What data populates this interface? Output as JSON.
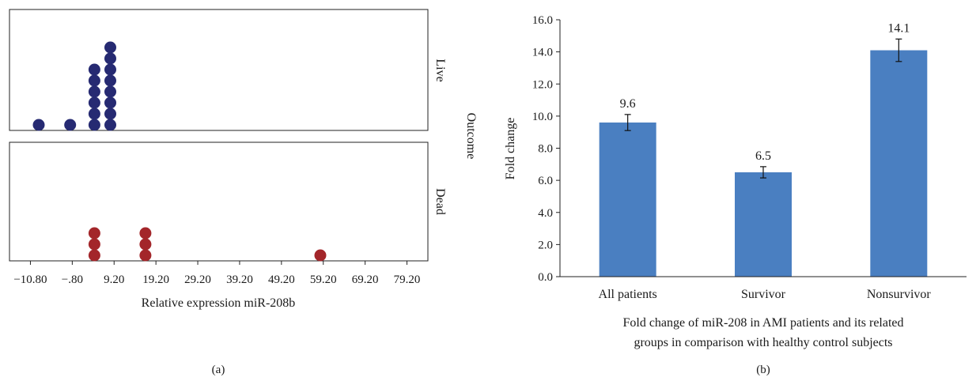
{
  "chart_data": [
    {
      "type": "scatter",
      "subtype": "stacked-dot-plot",
      "panel_label": "(a)",
      "xlabel": "Relative expression miR-208b",
      "ylabel": "Outcome",
      "xlim": [
        -15.8,
        84.2
      ],
      "x_ticks": [
        -10.8,
        -0.8,
        9.2,
        19.2,
        29.2,
        39.2,
        49.2,
        59.2,
        69.2,
        79.2
      ],
      "x_tick_labels": [
        "−10.80",
        "−.80",
        "9.20",
        "19.20",
        "29.20",
        "39.20",
        "49.20",
        "59.20",
        "69.20",
        "79.20"
      ],
      "grid": false,
      "colors": {
        "Live": "#262a72",
        "Dead": "#a3262a"
      },
      "series": [
        {
          "name": "Live",
          "x": [
            -8.8,
            -1.3,
            4.5,
            4.5,
            4.5,
            4.5,
            4.5,
            4.5,
            8.3,
            8.3,
            8.3,
            8.3,
            8.3,
            8.3,
            8.3,
            8.3
          ]
        },
        {
          "name": "Dead",
          "x": [
            4.5,
            4.5,
            4.5,
            16.7,
            16.7,
            16.7,
            58.5
          ]
        }
      ]
    },
    {
      "type": "bar",
      "panel_label": "(b)",
      "categories": [
        "All patients",
        "Survivor",
        "Nonsurvivor"
      ],
      "values": [
        9.6,
        6.5,
        14.1
      ],
      "value_labels": [
        "9.6",
        "6.5",
        "14.1"
      ],
      "error": [
        0.5,
        0.35,
        0.7
      ],
      "ylabel": "Fold change",
      "ylim": [
        0,
        16
      ],
      "y_ticks": [
        0,
        2,
        4,
        6,
        8,
        10,
        12,
        14,
        16
      ],
      "y_tick_labels": [
        "0.0",
        "2.0",
        "4.0",
        "6.0",
        "8.0",
        "10.0",
        "12.0",
        "14.0",
        "16.0"
      ],
      "xlabel_lines": [
        "Fold change of miR-208 in AMI patients and its related",
        "groups in comparison with healthy control subjects"
      ],
      "bar_color": "#4a7fc1",
      "grid": false
    }
  ]
}
